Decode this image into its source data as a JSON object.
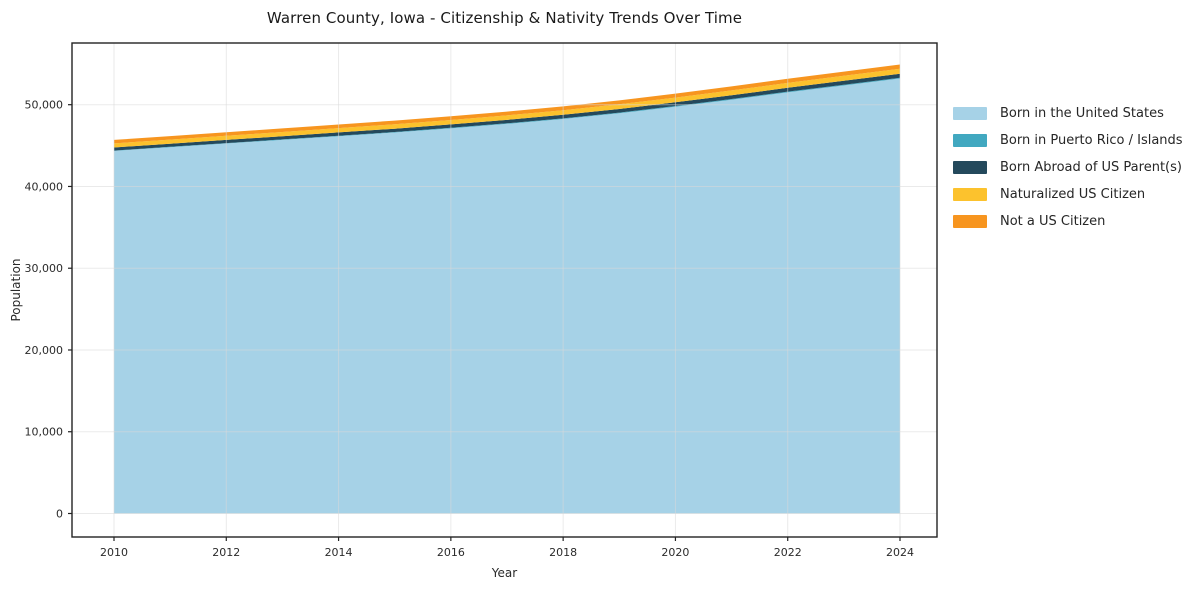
{
  "window": {
    "background_color": "#ffffff"
  },
  "chart_data": {
    "type": "area",
    "stacked": true,
    "title": "Warren County, Iowa - Citizenship & Nativity Trends Over Time",
    "xlabel": "Year",
    "ylabel": "Population",
    "grid": true,
    "legend_position": "right-outside",
    "xlim": [
      2009.25,
      2024.66
    ],
    "ylim": [
      -2874,
      57550
    ],
    "x_ticks": [
      2010,
      2012,
      2014,
      2016,
      2018,
      2020,
      2022,
      2024
    ],
    "y_ticks": [
      0,
      10000,
      20000,
      30000,
      40000,
      50000
    ],
    "y_tick_labels": [
      "0",
      "10,000",
      "20,000",
      "30,000",
      "40,000",
      "50,000"
    ],
    "x": [
      2010,
      2011,
      2012,
      2013,
      2014,
      2015,
      2016,
      2017,
      2018,
      2019,
      2020,
      2021,
      2022,
      2023,
      2024
    ],
    "series": [
      {
        "name": "Born in the United States",
        "color": "#a6d2e7",
        "values": [
          44350,
          44800,
          45250,
          45700,
          46150,
          46600,
          47100,
          47650,
          48250,
          48950,
          49750,
          50600,
          51500,
          52350,
          53200
        ]
      },
      {
        "name": "Born in Puerto Rico / Islands",
        "color": "#41a8c0",
        "values": [
          40,
          45,
          50,
          55,
          60,
          65,
          70,
          75,
          80,
          85,
          90,
          95,
          100,
          100,
          100
        ]
      },
      {
        "name": "Born Abroad of US Parent(s)",
        "color": "#24495c",
        "values": [
          380,
          385,
          390,
          395,
          400,
          405,
          415,
          420,
          430,
          440,
          450,
          460,
          470,
          475,
          480
        ]
      },
      {
        "name": "Naturalized US Citizen",
        "color": "#fcc22d",
        "values": [
          500,
          505,
          510,
          515,
          525,
          530,
          540,
          550,
          560,
          570,
          580,
          590,
          600,
          610,
          620
        ]
      },
      {
        "name": "Not a US Citizen",
        "color": "#f7951f",
        "values": [
          420,
          425,
          430,
          440,
          445,
          450,
          460,
          465,
          470,
          480,
          490,
          495,
          505,
          510,
          520
        ]
      }
    ],
    "style": {
      "grid_color": "#d9d9d9",
      "frame_color": "#222222",
      "tick_text_color": "#2b2b2b"
    }
  }
}
